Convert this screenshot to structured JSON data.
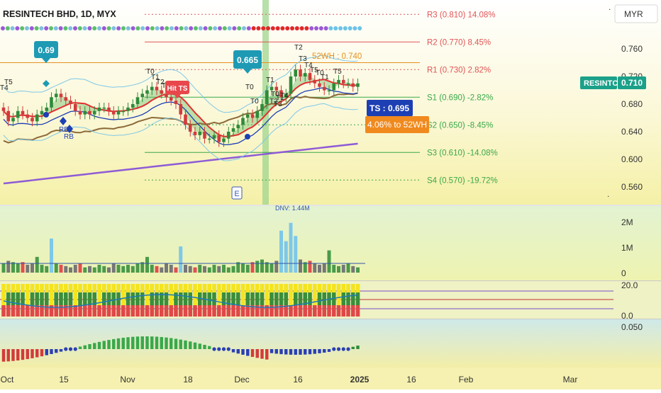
{
  "header": {
    "symbol": "RESINTECH BHD, 1D, MYX",
    "currency_button": "MYR"
  },
  "chart_data": {
    "type": "candlestick",
    "title": "RESINTECH BHD, 1D, MYX",
    "ticker": "RESINTC",
    "last_price": "0.710",
    "price_axis": {
      "range": [
        0.54,
        0.79
      ],
      "ticks": [
        "0.760",
        "0.720",
        "0.680",
        "0.640",
        "0.600",
        "0.560"
      ]
    },
    "time_axis": {
      "labels": [
        "Oct",
        "15",
        "Nov",
        "18",
        "Dec",
        "16",
        "2025",
        "16",
        "Feb",
        "Mar"
      ]
    },
    "pivot_levels": [
      {
        "label": "R3 (0.810) 14.08%",
        "value": 0.81,
        "color": "#e05555"
      },
      {
        "label": "R2 (0.770) 8.45%",
        "value": 0.77,
        "color": "#e05555"
      },
      {
        "label": "R1 (0.730) 2.82%",
        "value": 0.73,
        "color": "#e05555"
      },
      {
        "label": "S1 (0.690) -2.82%",
        "value": 0.69,
        "color": "#3aa84a"
      },
      {
        "label": "S2 (0.650) -8.45%",
        "value": 0.65,
        "color": "#3aa84a"
      },
      {
        "label": "S3 (0.610) -14.08%",
        "value": 0.61,
        "color": "#3aa84a"
      },
      {
        "label": "S4 (0.570) -19.72%",
        "value": 0.57,
        "color": "#3aa84a"
      }
    ],
    "week52_high": {
      "label": "52WH : 0.740",
      "value": 0.74
    },
    "callouts": [
      {
        "label": "0.69",
        "type": "marker"
      },
      {
        "label": "0.665",
        "type": "marker"
      },
      {
        "label": "Hit TS",
        "type": "signal"
      },
      {
        "label": "TS : 0.695",
        "type": "trailing-stop"
      },
      {
        "label": "4.06% to 52WH",
        "type": "distance"
      },
      {
        "label": "E",
        "type": "event"
      }
    ],
    "small_labels": [
      "T5",
      "T4",
      "T0",
      "T1",
      "T2",
      "T3",
      "RB",
      "RB",
      "T0",
      "T0",
      "T1",
      "T0",
      "T1",
      "T2",
      "T3",
      "T4",
      "T5",
      "T0",
      "T1",
      "T2",
      "T3",
      "T4",
      "T5"
    ],
    "volume_panel": {
      "label": "DNV: 1.44M",
      "ticks": [
        "2M",
        "1M",
        "0"
      ]
    },
    "oscillator_panel": {
      "ticks": [
        "20.0",
        "0.0"
      ]
    },
    "momentum_panel": {
      "ticks": [
        "0.050"
      ]
    },
    "series": [
      {
        "name": "close",
        "values": [
          0.67,
          0.655,
          0.66,
          0.67,
          0.665,
          0.66,
          0.655,
          0.665,
          0.67,
          0.675,
          0.69,
          0.695,
          0.69,
          0.685,
          0.68,
          0.67,
          0.665,
          0.67,
          0.665,
          0.67,
          0.675,
          0.675,
          0.67,
          0.665,
          0.67,
          0.67,
          0.675,
          0.68,
          0.69,
          0.695,
          0.7,
          0.705,
          0.7,
          0.695,
          0.69,
          0.685,
          0.68,
          0.665,
          0.65,
          0.64,
          0.635,
          0.64,
          0.63,
          0.63,
          0.635,
          0.625,
          0.63,
          0.64,
          0.645,
          0.65,
          0.66,
          0.665,
          0.66,
          0.67,
          0.68,
          0.7,
          0.705,
          0.7,
          0.69,
          0.695,
          0.72,
          0.73,
          0.72,
          0.725,
          0.715,
          0.71,
          0.705,
          0.7,
          0.7,
          0.71,
          0.715,
          0.71,
          0.71,
          0.705,
          0.71
        ]
      }
    ]
  }
}
